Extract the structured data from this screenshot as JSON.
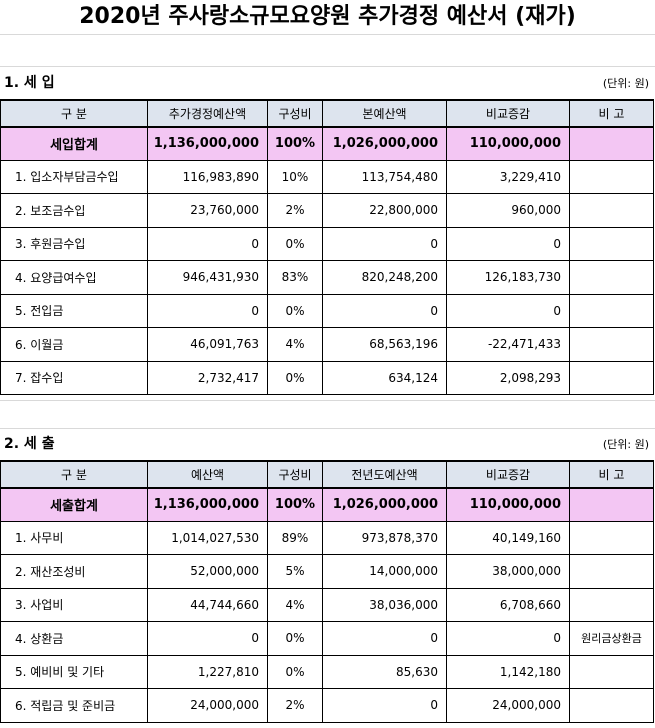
{
  "title": "2020년 주사랑소규모요양원 추가경정 예산서 (재가)",
  "income": {
    "section_title": "1. 세    입",
    "unit": "(단위: 원)",
    "headers": [
      "구    분",
      "추가경정예산액",
      "구성비",
      "본예산액",
      "비교증감",
      "비  고"
    ],
    "total": {
      "name": "세입합계",
      "amount": "1,136,000,000",
      "ratio": "100%",
      "base": "1,026,000,000",
      "diff": "110,000,000",
      "note": ""
    },
    "rows": [
      {
        "name": "1. 입소자부담금수입",
        "amount": "116,983,890",
        "ratio": "10%",
        "base": "113,754,480",
        "diff": "3,229,410",
        "note": ""
      },
      {
        "name": "2. 보조금수입",
        "amount": "23,760,000",
        "ratio": "2%",
        "base": "22,800,000",
        "diff": "960,000",
        "note": ""
      },
      {
        "name": "3. 후원금수입",
        "amount": "0",
        "ratio": "0%",
        "base": "0",
        "diff": "0",
        "note": ""
      },
      {
        "name": "4. 요양급여수입",
        "amount": "946,431,930",
        "ratio": "83%",
        "base": "820,248,200",
        "diff": "126,183,730",
        "note": ""
      },
      {
        "name": "5. 전입금",
        "amount": "0",
        "ratio": "0%",
        "base": "0",
        "diff": "0",
        "note": ""
      },
      {
        "name": "6. 이월금",
        "amount": "46,091,763",
        "ratio": "4%",
        "base": "68,563,196",
        "diff": "-22,471,433",
        "note": ""
      },
      {
        "name": "7. 잡수입",
        "amount": "2,732,417",
        "ratio": "0%",
        "base": "634,124",
        "diff": "2,098,293",
        "note": ""
      }
    ]
  },
  "expense": {
    "section_title": "2. 세    출",
    "unit": "(단위: 원)",
    "headers": [
      "구    분",
      "예산액",
      "구성비",
      "전년도예산액",
      "비교증감",
      "비  고"
    ],
    "total": {
      "name": "세출합계",
      "amount": "1,136,000,000",
      "ratio": "100%",
      "base": "1,026,000,000",
      "diff": "110,000,000",
      "note": ""
    },
    "rows": [
      {
        "name": "1. 사무비",
        "amount": "1,014,027,530",
        "ratio": "89%",
        "base": "973,878,370",
        "diff": "40,149,160",
        "note": ""
      },
      {
        "name": "2. 재산조성비",
        "amount": "52,000,000",
        "ratio": "5%",
        "base": "14,000,000",
        "diff": "38,000,000",
        "note": ""
      },
      {
        "name": "3. 사업비",
        "amount": "44,744,660",
        "ratio": "4%",
        "base": "38,036,000",
        "diff": "6,708,660",
        "note": ""
      },
      {
        "name": "4. 상환금",
        "amount": "0",
        "ratio": "0%",
        "base": "0",
        "diff": "0",
        "note": "원리금상환금"
      },
      {
        "name": "5. 예비비 및 기타",
        "amount": "1,227,810",
        "ratio": "0%",
        "base": "85,630",
        "diff": "1,142,180",
        "note": ""
      },
      {
        "name": "6. 적립금 및 준비금",
        "amount": "24,000,000",
        "ratio": "2%",
        "base": "0",
        "diff": "24,000,000",
        "note": ""
      }
    ]
  }
}
